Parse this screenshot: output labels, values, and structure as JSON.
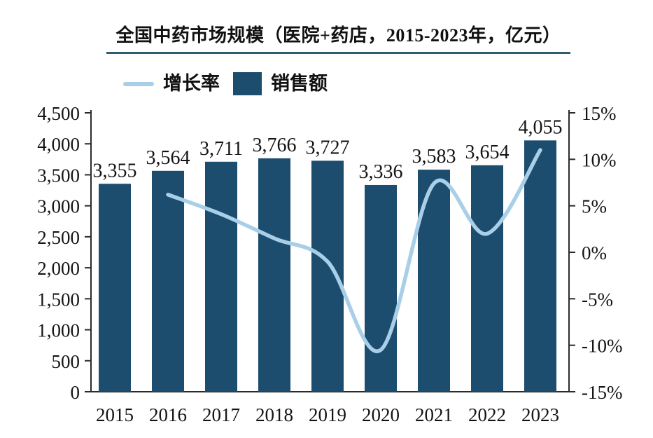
{
  "title": {
    "text": "全国中药市场规模（医院+药店，2015-2023年，亿元）"
  },
  "legend": {
    "growth_label": "增长率",
    "sales_label": "销售额"
  },
  "colors": {
    "bar": "#1C4C6E",
    "line": "#A9CFE8",
    "axis": "#2B2B2B",
    "text": "#141414",
    "title_underline": "#2F5D6E"
  },
  "chart_data": {
    "type": "bar",
    "combo": "bar+line",
    "title": "全国中药市场规模（医院+药店，2015-2023年，亿元）",
    "categories": [
      "2015",
      "2016",
      "2017",
      "2018",
      "2019",
      "2020",
      "2021",
      "2022",
      "2023"
    ],
    "series": [
      {
        "name": "销售额",
        "type": "bar",
        "axis": "left",
        "values": [
          3355,
          3564,
          3711,
          3766,
          3727,
          3336,
          3583,
          3654,
          4055
        ],
        "labels": [
          "3,355",
          "3,564",
          "3,711",
          "3,766",
          "3,727",
          "3,336",
          "3,583",
          "3,654",
          "4,055"
        ]
      },
      {
        "name": "增长率",
        "type": "line",
        "axis": "right",
        "unit": "%",
        "x": [
          "2016",
          "2017",
          "2018",
          "2019",
          "2020",
          "2021",
          "2022",
          "2023"
        ],
        "values": [
          6.2,
          4.1,
          1.5,
          -1.0,
          -10.5,
          7.4,
          2.0,
          11.0
        ]
      }
    ],
    "left_axis": {
      "min": 0,
      "max": 4500,
      "step": 500,
      "tick_labels": [
        "0",
        "500",
        "1,000",
        "1,500",
        "2,000",
        "2,500",
        "3,000",
        "3,500",
        "4,000",
        "4,500"
      ]
    },
    "right_axis": {
      "min": -15,
      "max": 15,
      "step": 5,
      "tick_labels": [
        "-15%",
        "-10%",
        "-5%",
        "0%",
        "5%",
        "10%",
        "15%"
      ]
    },
    "legend_position": "top",
    "grid": false
  }
}
